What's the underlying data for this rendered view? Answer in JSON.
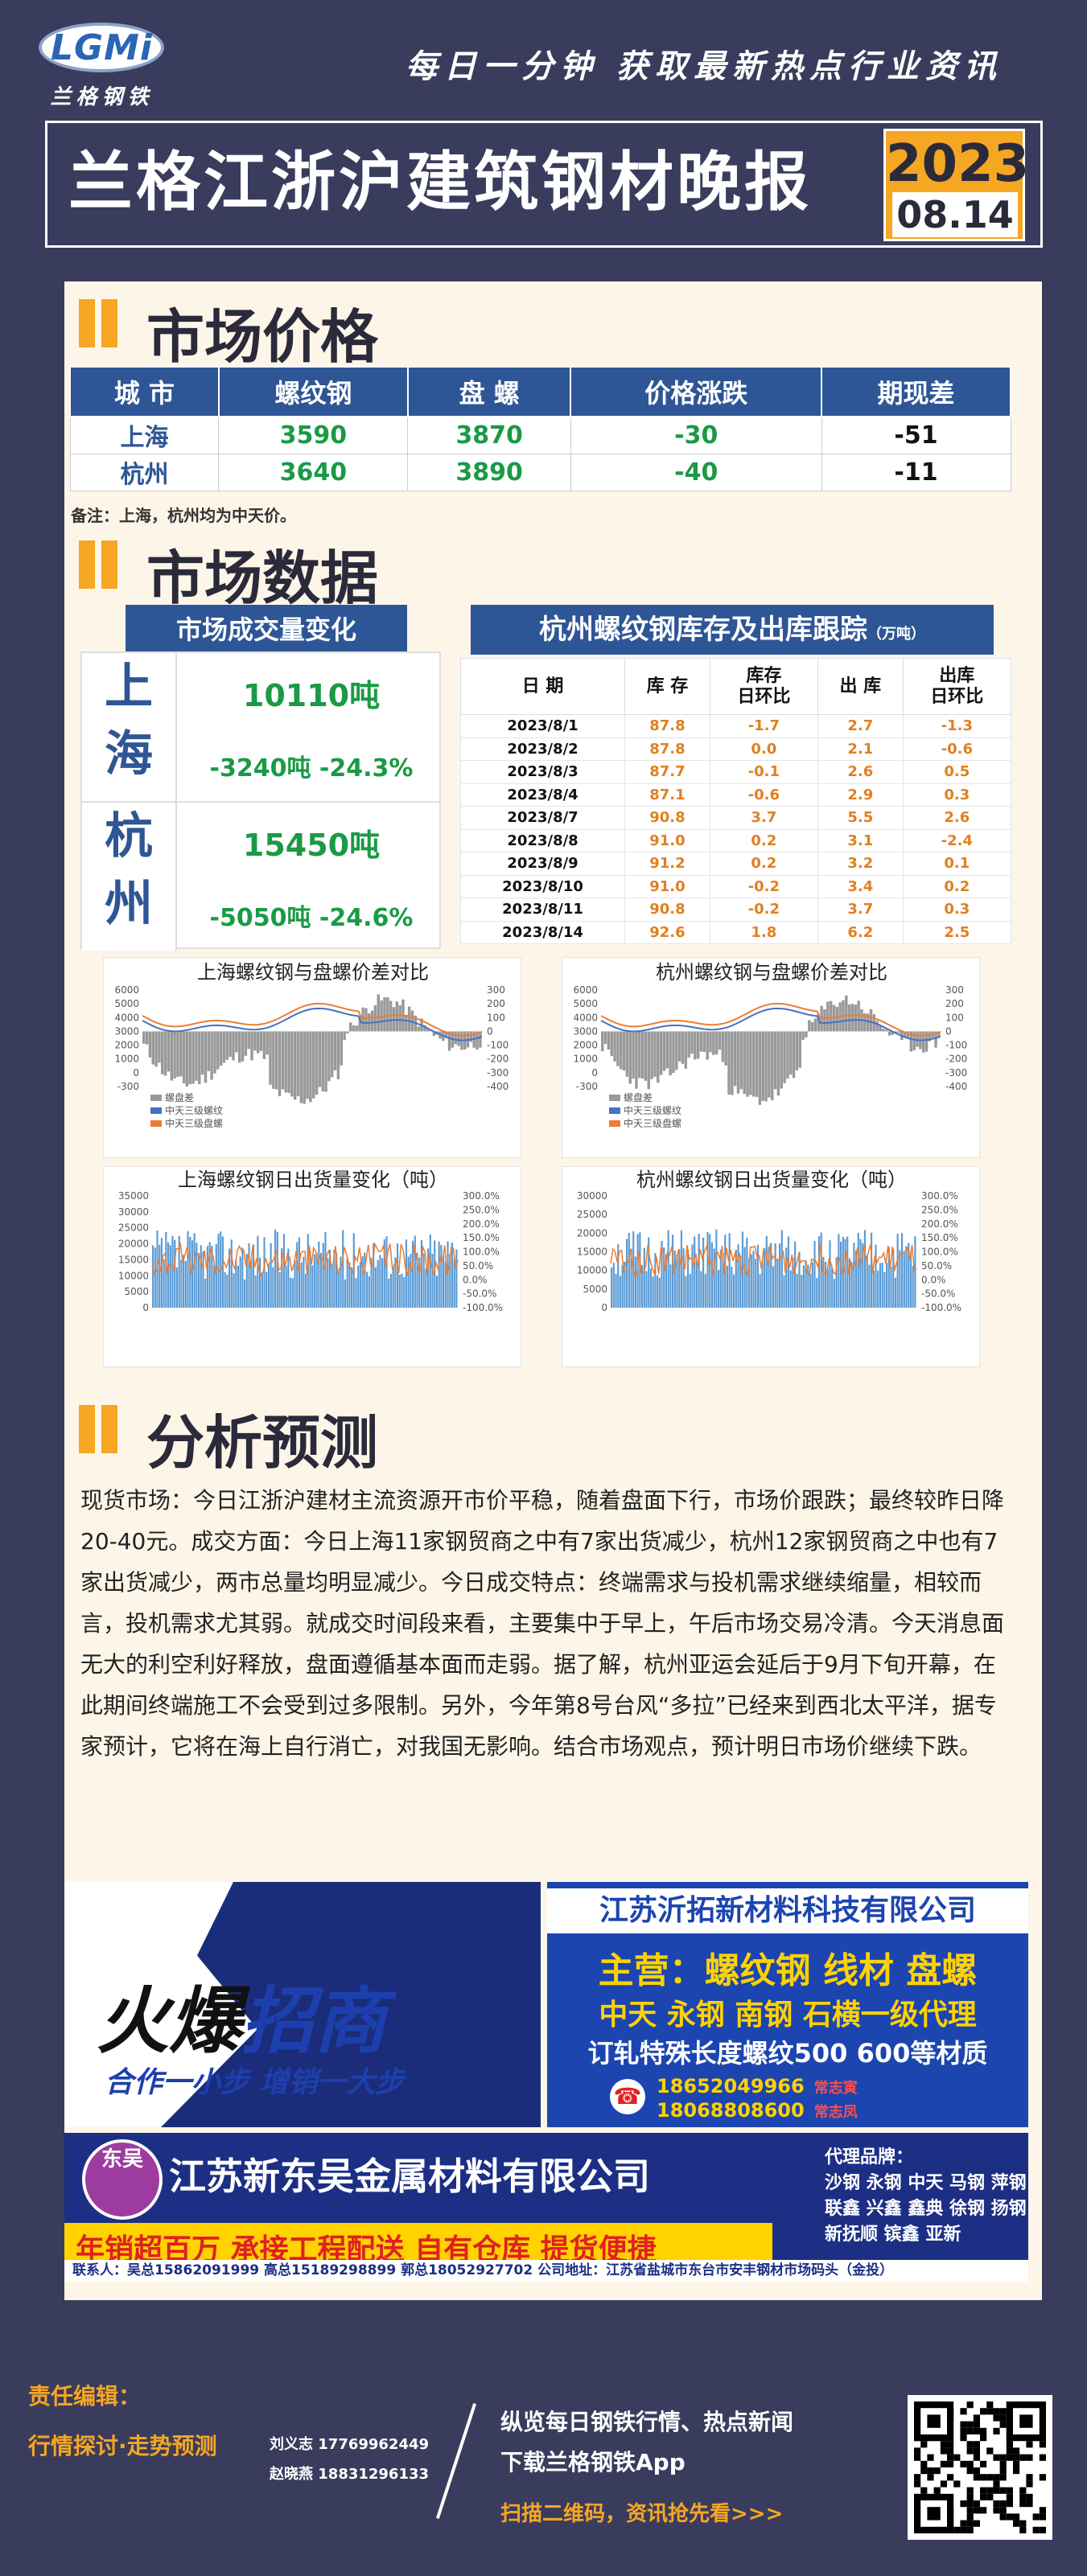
{
  "header": {
    "logo_text": "LGMi",
    "logo_sub": "兰格钢铁",
    "slogan": "每日一分钟  获取最新热点行业资讯",
    "title": "兰格江浙沪建筑钢材晚报",
    "year": "2023",
    "date": "08.14"
  },
  "sections": {
    "price": "市场价格",
    "data": "市场数据",
    "analysis": "分析预测"
  },
  "price_table": {
    "headers": [
      "城  市",
      "螺纹钢",
      "盘  螺",
      "价格涨跌",
      "期现差"
    ],
    "rows": [
      {
        "city": "上海",
        "rebar": "3590",
        "coil": "3870",
        "change": "-30",
        "basis": "-51"
      },
      {
        "city": "杭州",
        "rebar": "3640",
        "coil": "3890",
        "change": "-40",
        "basis": "-11"
      }
    ],
    "note": "备注：上海，杭州均为中天价。"
  },
  "volume": {
    "title": "市场成交量变化",
    "cities": [
      {
        "name1": "上",
        "name2": "海",
        "amount": "10110吨",
        "change": "-3240吨  -24.3%"
      },
      {
        "name1": "杭",
        "name2": "州",
        "amount": "15450吨",
        "change": "-5050吨  -24.6%"
      }
    ]
  },
  "inventory": {
    "title": "杭州螺纹钢库存及出库跟踪",
    "unit": "（万吨）",
    "headers": [
      "日 期",
      "库 存",
      "库存\n日环比",
      "出 库",
      "出库\n日环比"
    ],
    "rows": [
      [
        "2023/8/1",
        "87.8",
        "-1.7",
        "2.7",
        "-1.3"
      ],
      [
        "2023/8/2",
        "87.8",
        "0.0",
        "2.1",
        "-0.6"
      ],
      [
        "2023/8/3",
        "87.7",
        "-0.1",
        "2.6",
        "0.5"
      ],
      [
        "2023/8/4",
        "87.1",
        "-0.6",
        "2.9",
        "0.3"
      ],
      [
        "2023/8/7",
        "90.8",
        "3.7",
        "5.5",
        "2.6"
      ],
      [
        "2023/8/8",
        "91.0",
        "0.2",
        "3.1",
        "-2.4"
      ],
      [
        "2023/8/9",
        "91.2",
        "0.2",
        "3.2",
        "0.1"
      ],
      [
        "2023/8/10",
        "91.0",
        "-0.2",
        "3.4",
        "0.2"
      ],
      [
        "2023/8/11",
        "90.8",
        "-0.2",
        "3.7",
        "0.3"
      ],
      [
        "2023/8/14",
        "92.6",
        "1.8",
        "6.2",
        "2.5"
      ]
    ]
  },
  "chart_data": [
    {
      "type": "line",
      "title": "上海螺纹钢与盘螺价差对比",
      "ylim": [
        -300,
        6000
      ],
      "y2lim": [
        -400,
        300
      ],
      "legend": [
        "螺盘差",
        "中天三级螺纹",
        "中天三级盘螺"
      ],
      "colors": [
        "#999999",
        "#4472c4",
        "#ed7d31"
      ]
    },
    {
      "type": "line",
      "title": "杭州螺纹钢与盘螺价差对比",
      "ylim": [
        -300,
        6000
      ],
      "y2lim": [
        -400,
        300
      ],
      "legend": [
        "螺盘差",
        "中天三级螺纹",
        "中天三级盘螺"
      ],
      "colors": [
        "#999999",
        "#4472c4",
        "#ed7d31"
      ]
    },
    {
      "type": "bar",
      "title": "上海螺纹钢日出货量变化（吨）",
      "ylim": [
        0,
        35000
      ],
      "y2lim": [
        -100,
        300
      ],
      "colors": [
        "#5b9bd5",
        "#ed7d31"
      ]
    },
    {
      "type": "bar",
      "title": "杭州螺纹钢日出货量变化（吨）",
      "ylim": [
        0,
        30000
      ],
      "y2lim": [
        -100,
        300
      ],
      "colors": [
        "#5b9bd5",
        "#ed7d31"
      ]
    }
  ],
  "chart_axes": {
    "price_left": [
      "6000",
      "5000",
      "4000",
      "3000",
      "2000",
      "1000",
      "0",
      "-300"
    ],
    "price_right": [
      "300",
      "200",
      "100",
      "0",
      "-100",
      "-200",
      "-300",
      "-400"
    ],
    "sh_left": [
      "35000",
      "30000",
      "25000",
      "20000",
      "15000",
      "10000",
      "5000",
      "0"
    ],
    "hz_left": [
      "30000",
      "25000",
      "20000",
      "15000",
      "10000",
      "5000",
      "0"
    ],
    "pct_right": [
      "300.0%",
      "250.0%",
      "200.0%",
      "150.0%",
      "100.0%",
      "50.0%",
      "0.0%",
      "-50.0%",
      "-100.0%"
    ]
  },
  "analysis_text": "现货市场：今日江浙沪建材主流资源开市价平稳，随着盘面下行，市场价跟跌；最终较昨日降20-40元。成交方面：今日上海11家钢贸商之中有7家出货减少，杭州12家钢贸商之中也有7家出货减少，两市总量均明显减少。今日成交特点：终端需求与投机需求继续缩量，相较而言，投机需求尤其弱。就成交时间段来看，主要集中于早上，午后市场交易冷清。今天消息面无大的利空利好释放，盘面遵循基本面而走弱。据了解，杭州亚运会延后于9月下旬开幕，在此期间终端施工不会受到过多限制。另外，今年第8号台风“多拉”已经来到西北太平洋，据专家预计，它将在海上自行消亡，对我国无影响。结合市场观点，预计明日市场价继续下跌。",
  "ad1": {
    "big1": "火爆",
    "big2": "招商",
    "sub": "合作一小步  增销一大步"
  },
  "ad2": {
    "company": "江苏沂拓新材料科技有限公司",
    "main": "主营：螺纹钢 线材 盘螺",
    "agent": "中天 永钢 南钢 石横一级代理",
    "custom": "订轧特殊长度螺纹500 600等材质",
    "phones": [
      {
        "num": "18652049966",
        "name": "常志寅"
      },
      {
        "num": "18068808600",
        "name": "常志凤"
      }
    ]
  },
  "ad3": {
    "emblem": "东吴",
    "company": "江苏新东吴金属材料有限公司",
    "slogan": "年销超百万  承接工程配送  自有仓库  提货便捷",
    "agent_title": "代理品牌：",
    "brands": [
      "沙钢 永钢 中天 马钢 萍钢",
      "联鑫 兴鑫 鑫典 徐钢 扬钢",
      "新抚顺 镔鑫 亚新"
    ],
    "contact": "联系人：吴总15862091999  高总15189298899  郭总18052927702  公司地址：江苏省盐城市东台市安丰钢材市场码头（金投）"
  },
  "footer": {
    "editor_label": "责任编辑：",
    "tag": "行情探讨·走势预测",
    "editors": [
      "刘义志 17769962449",
      "赵晓燕 18831296133"
    ],
    "line1": "纵览每日钢铁行情、热点新闻",
    "line2": "下载兰格钢铁App",
    "line3": "扫描二维码，资讯抢先看>>>"
  }
}
